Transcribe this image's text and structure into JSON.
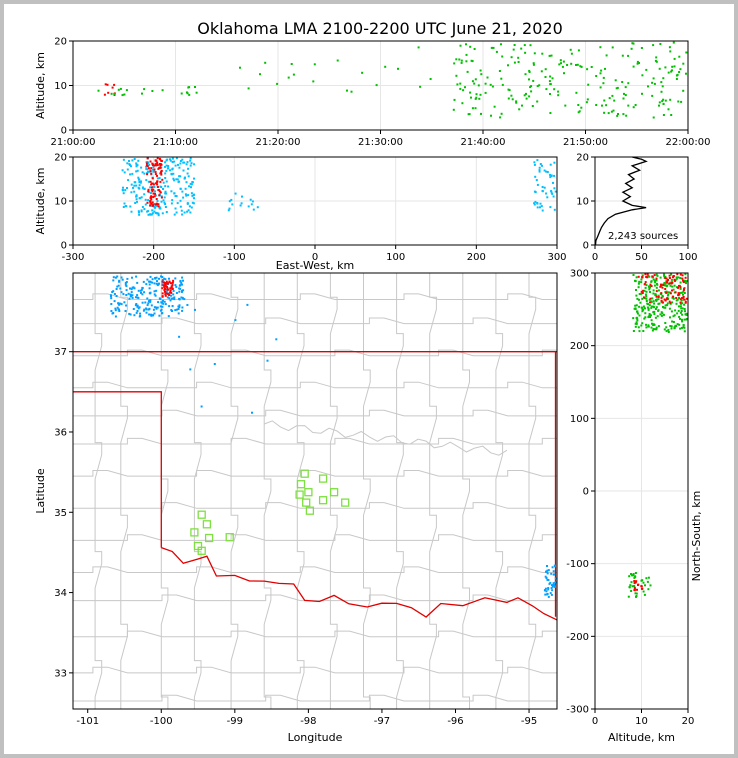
{
  "title": "Oklahoma LMA 2100-2200 UTC June 21, 2020",
  "colors": {
    "state_border": "#e00000",
    "county_border": "#c8c8c8",
    "station_marker": "#7ee040",
    "sources_scale": [
      "#0000ff",
      "#00a0ff",
      "#00ffff",
      "#80ff80",
      "#00c000",
      "#ffff00",
      "#ff8000",
      "#ff0000",
      "#800000"
    ]
  },
  "chart_data": [
    {
      "id": "time_height",
      "type": "scatter",
      "xlabel": "",
      "ylabel": "Altitude, km",
      "xticks": [
        "21:00:00",
        "21:10:00",
        "21:20:00",
        "21:30:00",
        "21:40:00",
        "21:50:00",
        "22:00:00"
      ],
      "xlim_minutes": [
        0,
        60
      ],
      "ylim": [
        0,
        20
      ],
      "yticks": [
        0,
        10,
        20
      ],
      "grid": true,
      "clusters": [
        {
          "x": [
            3,
            4
          ],
          "y": [
            8,
            11
          ],
          "n": 8,
          "color": "#ff0000"
        },
        {
          "x": [
            1,
            12
          ],
          "y": [
            8,
            10
          ],
          "n": 20,
          "color": "#00c000"
        },
        {
          "x": [
            15,
            36
          ],
          "y": [
            8,
            19
          ],
          "n": 20,
          "color": "#00c000"
        },
        {
          "x": [
            37,
            60
          ],
          "y": [
            3,
            20
          ],
          "n": 240,
          "color": "#00c000"
        }
      ]
    },
    {
      "id": "ew_height",
      "type": "scatter",
      "xlabel": "East-West, km",
      "ylabel": "Altitude, km",
      "xlim": [
        -300,
        300
      ],
      "xticks": [
        -300,
        -200,
        -100,
        0,
        100,
        200,
        300
      ],
      "ylim": [
        0,
        20
      ],
      "yticks": [
        0,
        10,
        20
      ],
      "grid": true,
      "clusters": [
        {
          "x": [
            -240,
            -150
          ],
          "y": [
            7,
            20
          ],
          "n": 260,
          "color": "#00c0ff"
        },
        {
          "x": [
            -210,
            -190
          ],
          "y": [
            9,
            20
          ],
          "n": 90,
          "color": "#ff0000"
        },
        {
          "x": [
            -110,
            -70
          ],
          "y": [
            7,
            12
          ],
          "n": 15,
          "color": "#00c0ff"
        },
        {
          "x": [
            270,
            300
          ],
          "y": [
            8,
            20
          ],
          "n": 50,
          "color": "#00c0ff"
        }
      ]
    },
    {
      "id": "histogram",
      "type": "line",
      "xlim": [
        0,
        100
      ],
      "xticks": [
        0,
        50,
        100
      ],
      "ylim": [
        0,
        20
      ],
      "yticks": [
        0,
        10,
        20
      ],
      "grid": true,
      "annotation": "2,243 sources",
      "profile": [
        [
          0.5,
          0
        ],
        [
          1,
          1
        ],
        [
          3,
          2
        ],
        [
          5,
          3
        ],
        [
          7,
          4
        ],
        [
          10,
          5
        ],
        [
          14,
          6
        ],
        [
          22,
          7
        ],
        [
          40,
          8
        ],
        [
          55,
          8.5
        ],
        [
          40,
          9
        ],
        [
          30,
          10
        ],
        [
          38,
          11
        ],
        [
          30,
          12
        ],
        [
          40,
          13
        ],
        [
          33,
          14
        ],
        [
          42,
          15
        ],
        [
          36,
          16
        ],
        [
          48,
          17
        ],
        [
          40,
          18
        ],
        [
          55,
          19
        ],
        [
          50,
          19.5
        ],
        [
          40,
          20
        ]
      ]
    },
    {
      "id": "plan_view",
      "type": "scatter",
      "xlabel": "Longitude",
      "ylabel": "Latitude",
      "xlim": [
        -101.2,
        -94.62
      ],
      "xticks": [
        -101,
        -100,
        -99,
        -98,
        -97,
        -96,
        -95
      ],
      "ylim": [
        32.55,
        37.98
      ],
      "yticks": [
        33,
        34,
        35,
        36,
        37
      ],
      "grid": false,
      "stations": [
        [
          -98.05,
          35.48
        ],
        [
          -98.1,
          35.35
        ],
        [
          -98.12,
          35.22
        ],
        [
          -98.0,
          35.25
        ],
        [
          -97.8,
          35.42
        ],
        [
          -97.65,
          35.25
        ],
        [
          -97.8,
          35.15
        ],
        [
          -97.5,
          35.12
        ],
        [
          -98.03,
          35.12
        ],
        [
          -97.98,
          35.02
        ],
        [
          -99.45,
          34.97
        ],
        [
          -99.38,
          34.85
        ],
        [
          -99.55,
          34.75
        ],
        [
          -99.35,
          34.68
        ],
        [
          -99.07,
          34.69
        ],
        [
          -99.5,
          34.58
        ],
        [
          -99.45,
          34.52
        ]
      ],
      "clusters": [
        {
          "x": [
            -100.7,
            -99.7
          ],
          "y": [
            37.45,
            37.95
          ],
          "n": 230,
          "color": "#00a0ff"
        },
        {
          "x": [
            -100.0,
            -99.85
          ],
          "y": [
            37.7,
            37.9
          ],
          "n": 45,
          "color": "#ff0000"
        },
        {
          "x": [
            -94.8,
            -94.62
          ],
          "y": [
            33.95,
            34.35
          ],
          "n": 45,
          "color": "#00a0ff"
        },
        {
          "x": [
            -99.8,
            -98.2
          ],
          "y": [
            36.2,
            37.6
          ],
          "n": 12,
          "color": "#00a0ff"
        }
      ]
    },
    {
      "id": "ns_height",
      "type": "scatter",
      "xlabel": "Altitude, km",
      "ylabel": "North-South, km",
      "xlim": [
        0,
        20
      ],
      "xticks": [
        0,
        10,
        20
      ],
      "ylim": [
        -300,
        300
      ],
      "yticks": [
        -300,
        -200,
        -100,
        0,
        100,
        200,
        300
      ],
      "grid": true,
      "clusters": [
        {
          "x": [
            8,
            20
          ],
          "y": [
            220,
            300
          ],
          "n": 300,
          "color": "#00c000"
        },
        {
          "x": [
            9,
            20
          ],
          "y": [
            260,
            300
          ],
          "n": 90,
          "color": "#ff0000"
        },
        {
          "x": [
            7,
            12
          ],
          "y": [
            -145,
            -110
          ],
          "n": 35,
          "color": "#00c000"
        },
        {
          "x": [
            8,
            10
          ],
          "y": [
            -135,
            -120
          ],
          "n": 15,
          "color": "#ff0000"
        }
      ]
    }
  ]
}
